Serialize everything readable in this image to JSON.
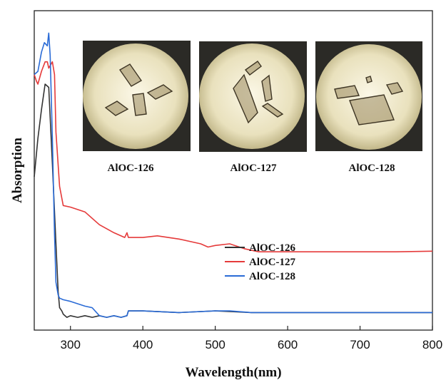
{
  "chart_data": {
    "type": "line",
    "xlabel": "Wavelength(nm)",
    "ylabel": "Absorption",
    "xlim": [
      250,
      800
    ],
    "ylim": [
      0,
      1
    ],
    "xticks": [
      300,
      400,
      500,
      600,
      700,
      800
    ],
    "y_tick_labels_shown": false,
    "grid": false,
    "legend_position": "center-right",
    "series": [
      {
        "name": "AlOC-126",
        "color": "#333333",
        "x": [
          250,
          255,
          260,
          265,
          270,
          275,
          280,
          283,
          285,
          288,
          290,
          295,
          300,
          310,
          320,
          330,
          340,
          350,
          360,
          370,
          378,
          380,
          385,
          400,
          450,
          500,
          520,
          550,
          600,
          650,
          700,
          750,
          800
        ],
        "y": [
          0.48,
          0.6,
          0.69,
          0.77,
          0.76,
          0.52,
          0.27,
          0.12,
          0.07,
          0.06,
          0.05,
          0.04,
          0.045,
          0.04,
          0.045,
          0.04,
          0.045,
          0.04,
          0.045,
          0.04,
          0.045,
          0.06,
          0.06,
          0.06,
          0.055,
          0.06,
          0.058,
          0.055,
          0.055,
          0.055,
          0.055,
          0.055,
          0.055
        ]
      },
      {
        "name": "AlOC-127",
        "color": "#e53a3a",
        "x": [
          250,
          253,
          255,
          260,
          265,
          268,
          270,
          275,
          278,
          280,
          285,
          290,
          300,
          320,
          340,
          360,
          375,
          378,
          380,
          400,
          420,
          450,
          480,
          490,
          500,
          520,
          540,
          560,
          600,
          650,
          700,
          750,
          800
        ],
        "y": [
          0.8,
          0.78,
          0.77,
          0.81,
          0.84,
          0.84,
          0.82,
          0.84,
          0.8,
          0.62,
          0.45,
          0.39,
          0.385,
          0.37,
          0.33,
          0.305,
          0.29,
          0.305,
          0.29,
          0.29,
          0.295,
          0.285,
          0.27,
          0.26,
          0.265,
          0.27,
          0.255,
          0.245,
          0.245,
          0.245,
          0.245,
          0.245,
          0.247
        ]
      },
      {
        "name": "AlOC-128",
        "color": "#2a6bd6",
        "x": [
          250,
          255,
          260,
          264,
          268,
          270,
          272,
          275,
          278,
          280,
          283,
          285,
          290,
          300,
          320,
          330,
          340,
          350,
          360,
          370,
          378,
          380,
          385,
          400,
          450,
          500,
          520,
          550,
          600,
          650,
          700,
          750,
          800
        ],
        "y": [
          0.8,
          0.81,
          0.87,
          0.9,
          0.89,
          0.93,
          0.86,
          0.6,
          0.3,
          0.15,
          0.11,
          0.1,
          0.095,
          0.09,
          0.075,
          0.07,
          0.045,
          0.04,
          0.045,
          0.04,
          0.045,
          0.06,
          0.06,
          0.06,
          0.055,
          0.06,
          0.06,
          0.055,
          0.055,
          0.055,
          0.055,
          0.055,
          0.055
        ]
      }
    ],
    "photos": [
      {
        "caption": "AlOC-126"
      },
      {
        "caption": "AlOC-127"
      },
      {
        "caption": "AlOC-128"
      }
    ]
  }
}
